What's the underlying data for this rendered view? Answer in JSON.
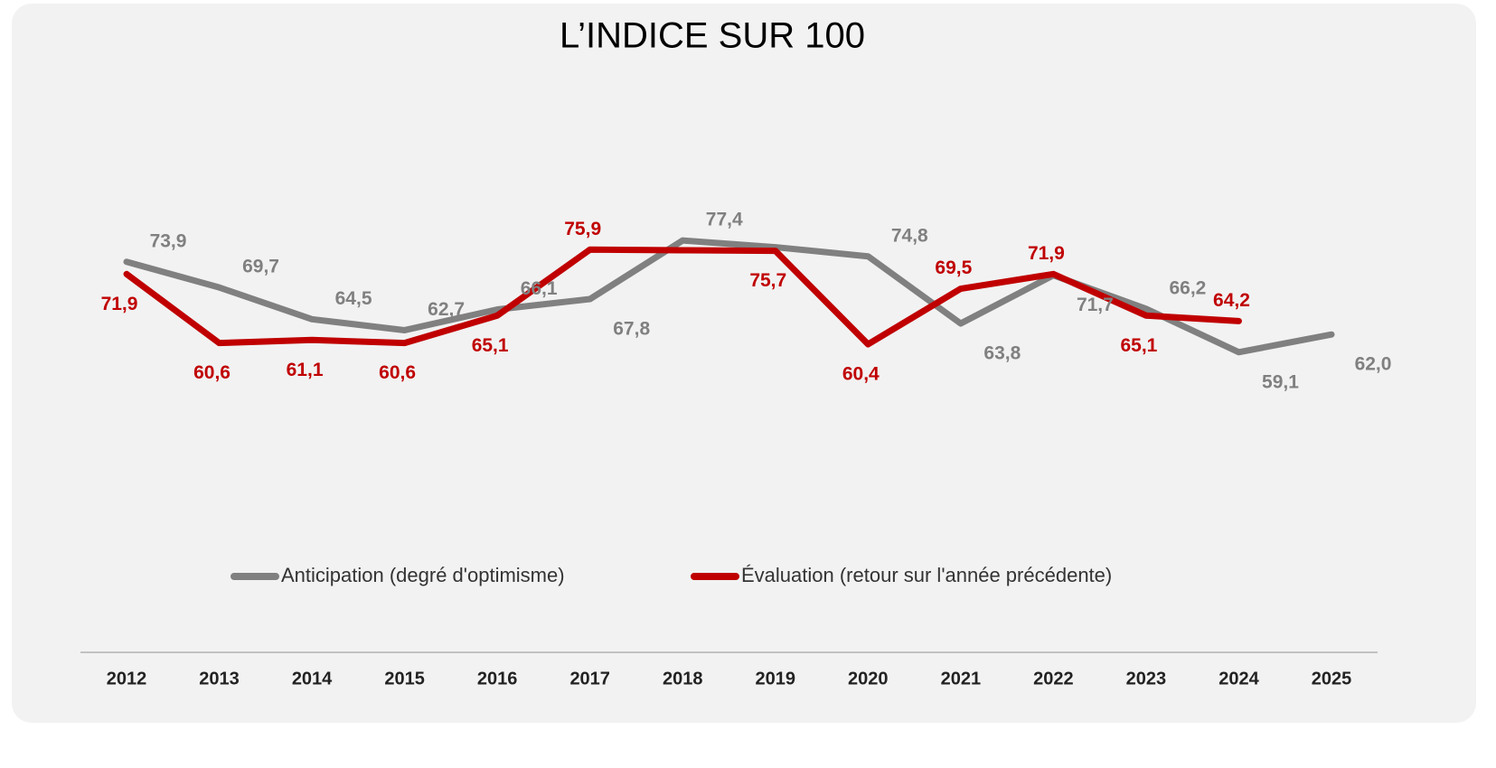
{
  "chart_data": {
    "type": "line",
    "title": "L’INDICE SUR 100",
    "categories": [
      "2012",
      "2013",
      "2014",
      "2015",
      "2016",
      "2017",
      "2018",
      "2019",
      "2020",
      "2021",
      "2022",
      "2023",
      "2024",
      "2025"
    ],
    "series": [
      {
        "name": "Anticipation (degré d'optimisme)",
        "color": "#808080",
        "values": [
          73.9,
          69.7,
          64.5,
          62.7,
          66.1,
          67.8,
          77.4,
          76.3,
          74.8,
          63.8,
          71.7,
          66.2,
          59.1,
          62.0
        ],
        "value_labels": [
          "73,9",
          "69,7",
          "64,5",
          "62,7",
          "66,1",
          "67,8",
          "77,4",
          null,
          "74,8",
          "63,8",
          "71,7",
          "66,2",
          "59,1",
          "62,0"
        ]
      },
      {
        "name": "Évaluation (retour sur l'année précédente)",
        "color": "#c00000",
        "values": [
          71.9,
          60.6,
          61.1,
          60.6,
          65.1,
          75.9,
          75.8,
          75.7,
          60.4,
          69.5,
          71.9,
          65.1,
          64.2,
          null
        ],
        "value_labels": [
          "71,9",
          "60,6",
          "61,1",
          "60,6",
          "65,1",
          "75,9",
          null,
          "75,7",
          "60,4",
          "69,5",
          "71,9",
          "65,1",
          "64,2",
          null
        ]
      }
    ],
    "ylim": [
      20,
      90
    ],
    "legend": "bottom"
  }
}
